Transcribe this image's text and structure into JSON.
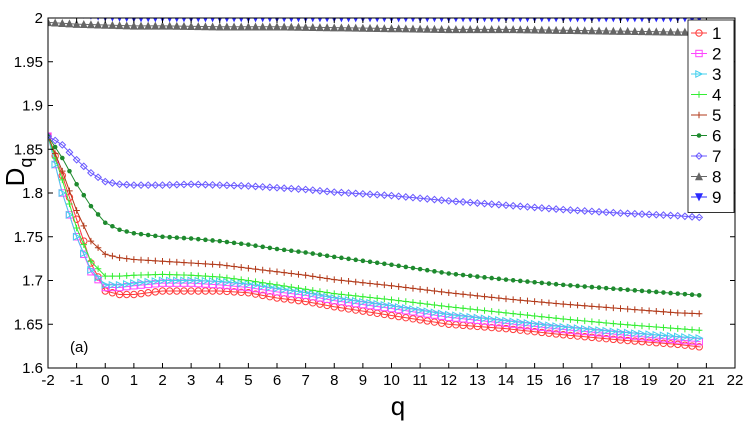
{
  "chart_data": {
    "type": "line",
    "title": "",
    "panel_label": "(a)",
    "xlabel": "q",
    "ylabel": "D",
    "ylabel_subscript": "q",
    "xlim": [
      -2,
      22
    ],
    "ylim": [
      1.6,
      2.0
    ],
    "xticks": [
      "-2",
      "-1",
      "0",
      "1",
      "2",
      "3",
      "4",
      "5",
      "6",
      "7",
      "8",
      "9",
      "10",
      "11",
      "12",
      "13",
      "14",
      "15",
      "16",
      "17",
      "18",
      "19",
      "20",
      "21",
      "22"
    ],
    "yticks": [
      "1.6",
      "1.65",
      "1.7",
      "1.75",
      "1.8",
      "1.85",
      "1.9",
      "1.95",
      "2"
    ],
    "grid": false,
    "legend_position": "right",
    "series": [
      {
        "name": "1",
        "color": "#ff3b3b",
        "marker": "circle",
        "x": [
          -2,
          -1.5,
          -1,
          -0.5,
          0,
          0.5,
          1,
          2,
          3,
          4,
          5,
          6,
          7,
          8,
          10,
          12,
          14,
          16,
          18,
          20,
          20.8
        ],
        "y": [
          1.865,
          1.82,
          1.77,
          1.72,
          1.688,
          1.684,
          1.684,
          1.688,
          1.688,
          1.688,
          1.686,
          1.68,
          1.676,
          1.67,
          1.66,
          1.65,
          1.645,
          1.638,
          1.632,
          1.627,
          1.624
        ]
      },
      {
        "name": "2",
        "color": "#ff44ff",
        "marker": "square",
        "x": [
          -2,
          -1.5,
          -1,
          -0.5,
          0,
          0.5,
          1,
          2,
          3,
          4,
          5,
          6,
          7,
          8,
          10,
          12,
          14,
          16,
          18,
          20,
          20.8
        ],
        "y": [
          1.865,
          1.8,
          1.75,
          1.71,
          1.692,
          1.692,
          1.694,
          1.697,
          1.697,
          1.695,
          1.692,
          1.687,
          1.683,
          1.677,
          1.668,
          1.658,
          1.651,
          1.644,
          1.638,
          1.632,
          1.63
        ]
      },
      {
        "name": "3",
        "color": "#44d0ee",
        "marker": "triangle-right",
        "x": [
          -2,
          -1.5,
          -1,
          -0.5,
          0,
          0.5,
          1,
          2,
          3,
          4,
          5,
          6,
          7,
          8,
          10,
          12,
          14,
          16,
          18,
          20,
          20.8
        ],
        "y": [
          1.865,
          1.8,
          1.75,
          1.712,
          1.695,
          1.695,
          1.697,
          1.7,
          1.7,
          1.699,
          1.696,
          1.691,
          1.686,
          1.68,
          1.671,
          1.661,
          1.654,
          1.647,
          1.641,
          1.636,
          1.634
        ]
      },
      {
        "name": "4",
        "color": "#33ee33",
        "marker": "plus",
        "x": [
          -2,
          -1.5,
          -1,
          -0.5,
          0,
          0.5,
          1,
          2,
          3,
          4,
          5,
          6,
          7,
          8,
          10,
          12,
          14,
          16,
          18,
          20,
          20.8
        ],
        "y": [
          1.865,
          1.815,
          1.76,
          1.722,
          1.705,
          1.705,
          1.706,
          1.707,
          1.706,
          1.704,
          1.7,
          1.695,
          1.69,
          1.685,
          1.678,
          1.67,
          1.663,
          1.656,
          1.65,
          1.645,
          1.643
        ]
      },
      {
        "name": "5",
        "color": "#b23a1a",
        "marker": "plus",
        "x": [
          -2,
          -1.5,
          -1,
          -0.5,
          0,
          0.5,
          1,
          2,
          3,
          4,
          5,
          6,
          7,
          8,
          10,
          12,
          14,
          16,
          18,
          20,
          20.8
        ],
        "y": [
          1.865,
          1.825,
          1.78,
          1.745,
          1.73,
          1.726,
          1.724,
          1.722,
          1.72,
          1.718,
          1.714,
          1.71,
          1.706,
          1.701,
          1.694,
          1.686,
          1.679,
          1.673,
          1.668,
          1.663,
          1.662
        ]
      },
      {
        "name": "6",
        "color": "#1e8a2e",
        "marker": "dot",
        "x": [
          -2,
          -1.5,
          -1,
          -0.5,
          0,
          0.5,
          1,
          2,
          3,
          4,
          5,
          6,
          7,
          8,
          10,
          12,
          14,
          16,
          18,
          20,
          20.8
        ],
        "y": [
          1.865,
          1.84,
          1.81,
          1.785,
          1.766,
          1.758,
          1.754,
          1.75,
          1.748,
          1.745,
          1.741,
          1.736,
          1.732,
          1.727,
          1.718,
          1.708,
          1.701,
          1.695,
          1.69,
          1.685,
          1.683
        ]
      },
      {
        "name": "7",
        "color": "#6a5aff",
        "marker": "diamond",
        "x": [
          -2,
          -1.5,
          -1,
          -0.5,
          0,
          0.5,
          1,
          2,
          3,
          4,
          5,
          6,
          7,
          8,
          10,
          12,
          14,
          16,
          18,
          20,
          20.8
        ],
        "y": [
          1.865,
          1.855,
          1.838,
          1.823,
          1.813,
          1.81,
          1.809,
          1.809,
          1.81,
          1.809,
          1.808,
          1.806,
          1.804,
          1.801,
          1.797,
          1.791,
          1.786,
          1.781,
          1.777,
          1.774,
          1.772
        ]
      },
      {
        "name": "8",
        "color": "#666666",
        "marker": "triangle-up",
        "x": [
          -2,
          -1,
          0,
          1,
          2,
          4,
          6,
          8,
          10,
          12,
          14,
          16,
          18,
          20,
          20.8
        ],
        "y": [
          1.995,
          1.993,
          1.992,
          1.991,
          1.991,
          1.99,
          1.99,
          1.989,
          1.988,
          1.987,
          1.987,
          1.986,
          1.985,
          1.984,
          1.984
        ]
      },
      {
        "name": "9",
        "color": "#2a2aff",
        "marker": "triangle-down",
        "x": [
          -2,
          -1,
          0,
          1,
          2,
          4,
          6,
          8,
          10,
          12,
          14,
          16,
          18,
          20,
          20.8
        ],
        "y": [
          2.012,
          2.005,
          2.001,
          2.0,
          2.0,
          2.0,
          2.0,
          2.0,
          2.0,
          2.0,
          2.0,
          2.0,
          2.0,
          2.0,
          2.0
        ]
      }
    ]
  }
}
